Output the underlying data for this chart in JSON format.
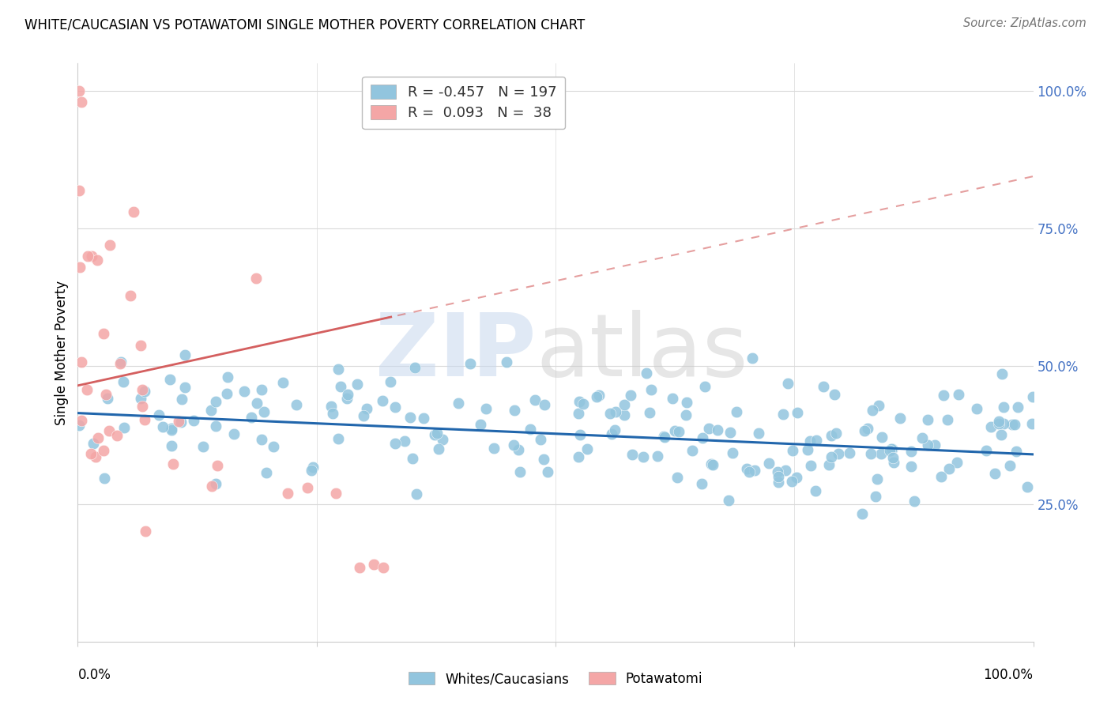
{
  "title": "WHITE/CAUCASIAN VS POTAWATOMI SINGLE MOTHER POVERTY CORRELATION CHART",
  "source": "Source: ZipAtlas.com",
  "ylabel": "Single Mother Poverty",
  "legend_labels": [
    "Whites/Caucasians",
    "Potawatomi"
  ],
  "blue_R": -0.457,
  "blue_N": 197,
  "pink_R": 0.093,
  "pink_N": 38,
  "blue_color": "#92c5de",
  "pink_color": "#f4a6a6",
  "blue_line_color": "#2166ac",
  "pink_line_color": "#d45f5f",
  "watermark_zip_color": "#c8d8ee",
  "watermark_atlas_color": "#c8c8c8",
  "right_ytick_color": "#4472c4",
  "grid_color": "#d9d9d9",
  "ylim_low": 0.0,
  "ylim_high": 1.05,
  "xlim_low": 0.0,
  "xlim_high": 1.0,
  "ytick_positions": [
    0.25,
    0.5,
    0.75,
    1.0
  ],
  "ytick_labels": [
    "25.0%",
    "50.0%",
    "75.0%",
    "100.0%"
  ]
}
